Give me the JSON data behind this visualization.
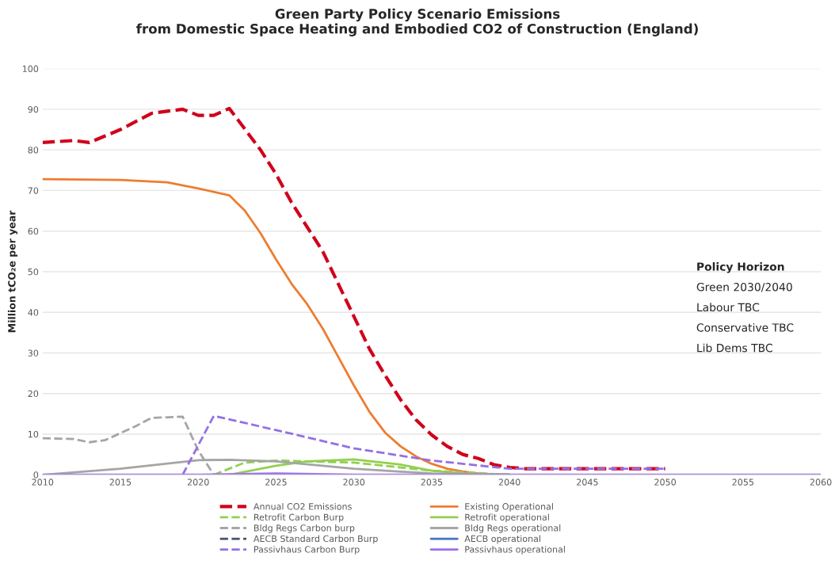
{
  "chart_data": {
    "type": "line",
    "title": "Green Party Policy Scenario Emissions\nfrom Domestic Space Heating and Embodied CO2 of Construction (England)",
    "ylabel": "Million tCO₂e per year",
    "xlim": [
      2010,
      2060
    ],
    "xticks": [
      2010,
      2015,
      2020,
      2025,
      2030,
      2035,
      2040,
      2045,
      2050,
      2055,
      2060
    ],
    "ylim": [
      0,
      100
    ],
    "yticks": [
      0,
      10,
      20,
      30,
      40,
      50,
      60,
      70,
      80,
      90,
      100
    ],
    "grid": "y",
    "legend": "bottom",
    "marker": "none",
    "annotations": [
      "Policy Horizon",
      "Green 2030/2040",
      "Labour TBC",
      "Conservative TBC",
      "Lib Dems TBC"
    ],
    "series": [
      {
        "name": "Annual CO2 Emissions",
        "color": "#d0021b",
        "line_style": "dashed",
        "x": [
          2010,
          2012,
          2013,
          2015,
          2017,
          2019,
          2020,
          2021,
          2022,
          2024,
          2025,
          2026,
          2027,
          2028,
          2029,
          2030,
          2031,
          2032,
          2033,
          2034,
          2035,
          2036,
          2037,
          2038,
          2039,
          2040,
          2041,
          2045,
          2050
        ],
        "values": [
          81.8,
          82.3,
          81.8,
          85,
          89,
          90,
          88.5,
          88.5,
          90.2,
          80,
          74,
          67,
          61,
          55,
          47,
          39,
          31,
          24.5,
          18.5,
          13.5,
          9.8,
          7,
          5,
          4,
          2.5,
          1.8,
          1.5,
          1.5,
          1.5
        ]
      },
      {
        "name": "Existing Operational",
        "color": "#ed7d31",
        "line_style": "solid",
        "x": [
          2010,
          2015,
          2018,
          2020,
          2022,
          2023,
          2024,
          2025,
          2026,
          2027,
          2028,
          2029,
          2030,
          2031,
          2032,
          2033,
          2034,
          2035,
          2036,
          2037,
          2038,
          2039,
          2040
        ],
        "values": [
          72.8,
          72.6,
          72,
          70.5,
          68.8,
          65,
          59.5,
          53,
          47,
          42,
          36,
          29,
          22,
          15.5,
          10.4,
          7,
          4.5,
          2.7,
          1.5,
          0.8,
          0.3,
          0.1,
          0
        ]
      },
      {
        "name": "Retrofit Carbon Burp",
        "color": "#92d050",
        "line_style": "dashed",
        "x": [
          2021,
          2023,
          2025,
          2030,
          2035,
          2040
        ],
        "values": [
          0,
          3,
          3.5,
          3,
          1,
          0
        ]
      },
      {
        "name": "Retrofit operational",
        "color": "#92d050",
        "line_style": "solid",
        "x": [
          2022,
          2025,
          2027,
          2030,
          2033,
          2035,
          2037,
          2040
        ],
        "values": [
          0,
          2.2,
          3.3,
          3.8,
          2.5,
          1,
          0.3,
          0
        ]
      },
      {
        "name": "Bldg Regs Carbon burp",
        "color": "#a5a5a5",
        "line_style": "dashed",
        "x": [
          2010,
          2012,
          2013,
          2014,
          2016,
          2017,
          2019,
          2020,
          2021
        ],
        "values": [
          9,
          8.8,
          8,
          8.5,
          12,
          14,
          14.3,
          6,
          0
        ]
      },
      {
        "name": "Bldg Regs operational",
        "color": "#a5a5a5",
        "line_style": "solid",
        "x": [
          2010,
          2015,
          2020,
          2022,
          2025,
          2030,
          2035,
          2040
        ],
        "values": [
          0,
          1.5,
          3.6,
          3.7,
          3.3,
          1.5,
          0.3,
          0
        ]
      },
      {
        "name": "AECB Standard Carbon Burp",
        "color": "#44546a",
        "line_style": "dashed"
      },
      {
        "name": "AECB operational",
        "color": "#4472c4",
        "line_style": "solid"
      },
      {
        "name": "Passivhaus Carbon Burp",
        "color": "#9370e6",
        "line_style": "dashed",
        "x": [
          2019,
          2021,
          2025,
          2030,
          2035,
          2038,
          2040,
          2045,
          2050
        ],
        "values": [
          0,
          14.5,
          11,
          6.5,
          3.5,
          2.3,
          1.5,
          1.5,
          1.5
        ]
      },
      {
        "name": "Passivhaus operational",
        "color": "#9b6fe8",
        "line_style": "solid",
        "x": [
          2010,
          2020,
          2025,
          2030,
          2060
        ],
        "values": [
          0,
          0,
          0.3,
          0,
          0
        ]
      }
    ]
  }
}
